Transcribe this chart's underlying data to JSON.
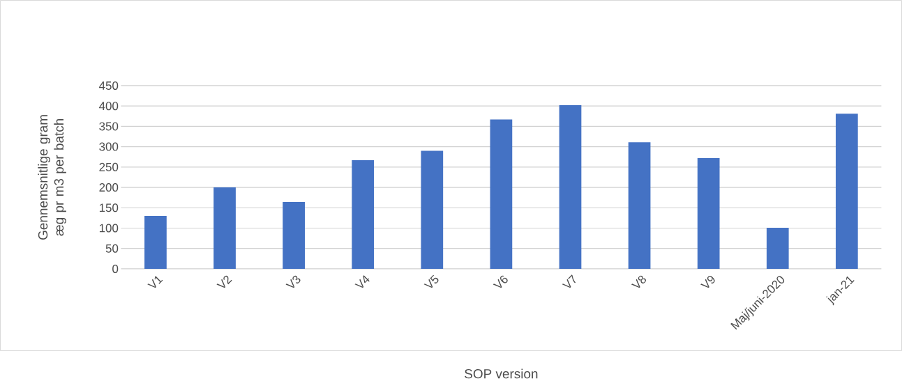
{
  "chart_data": {
    "type": "bar",
    "xlabel": "SOP version",
    "ylabel": "Gennemsnitlige gram æg pr m3 per batch",
    "categories": [
      "V1",
      "V2",
      "V3",
      "V4",
      "V5",
      "V6",
      "V7",
      "V8",
      "V9",
      "Maj/juni-2020",
      "jan-21"
    ],
    "values": [
      130,
      200,
      164,
      267,
      290,
      367,
      402,
      311,
      272,
      101,
      381
    ],
    "color": "#4472c4",
    "ylim": [
      0,
      450
    ],
    "yticks": [
      0,
      50,
      100,
      150,
      200,
      250,
      300,
      350,
      400,
      450
    ],
    "grid": "y"
  }
}
